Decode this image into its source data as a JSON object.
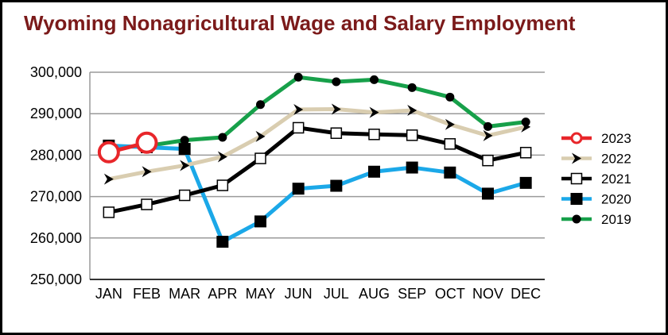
{
  "chart_data": {
    "type": "line",
    "title": "Wyoming Nonagricultural Wage and Salary Employment",
    "categories": [
      "JAN",
      "FEB",
      "MAR",
      "APR",
      "MAY",
      "JUN",
      "JUL",
      "AUG",
      "SEP",
      "OCT",
      "NOV",
      "DEC"
    ],
    "yticks": [
      "250,000",
      "260,000",
      "270,000",
      "280,000",
      "290,000",
      "300,000"
    ],
    "ylim": [
      250000,
      300000
    ],
    "grid": true,
    "legend_position": "right",
    "series": [
      {
        "name": "2023",
        "color": "#e8262a",
        "marker": "open-circle",
        "values": [
          280700,
          283000,
          null,
          null,
          null,
          null,
          null,
          null,
          null,
          null,
          null,
          null
        ]
      },
      {
        "name": "2022",
        "color": "#d9cdb0",
        "marker": "arrow",
        "values": [
          274200,
          276000,
          277500,
          279600,
          284500,
          291000,
          291100,
          290300,
          290800,
          287400,
          284700,
          286800
        ]
      },
      {
        "name": "2021",
        "color": "#000000",
        "marker": "open-square",
        "values": [
          266200,
          268100,
          270300,
          272700,
          279200,
          286600,
          285300,
          285000,
          284800,
          282700,
          278700,
          280600
        ]
      },
      {
        "name": "2020",
        "color": "#1ba8e8",
        "marker": "filled-square",
        "values": [
          282300,
          281900,
          281500,
          259100,
          264000,
          271900,
          272600,
          276000,
          277000,
          275800,
          270700,
          273300
        ]
      },
      {
        "name": "2019",
        "color": "#17a04a",
        "marker": "filled-circle",
        "values": [
          null,
          282200,
          283600,
          284300,
          292200,
          298800,
          297700,
          298200,
          296300,
          294000,
          286900,
          288000
        ]
      }
    ]
  }
}
